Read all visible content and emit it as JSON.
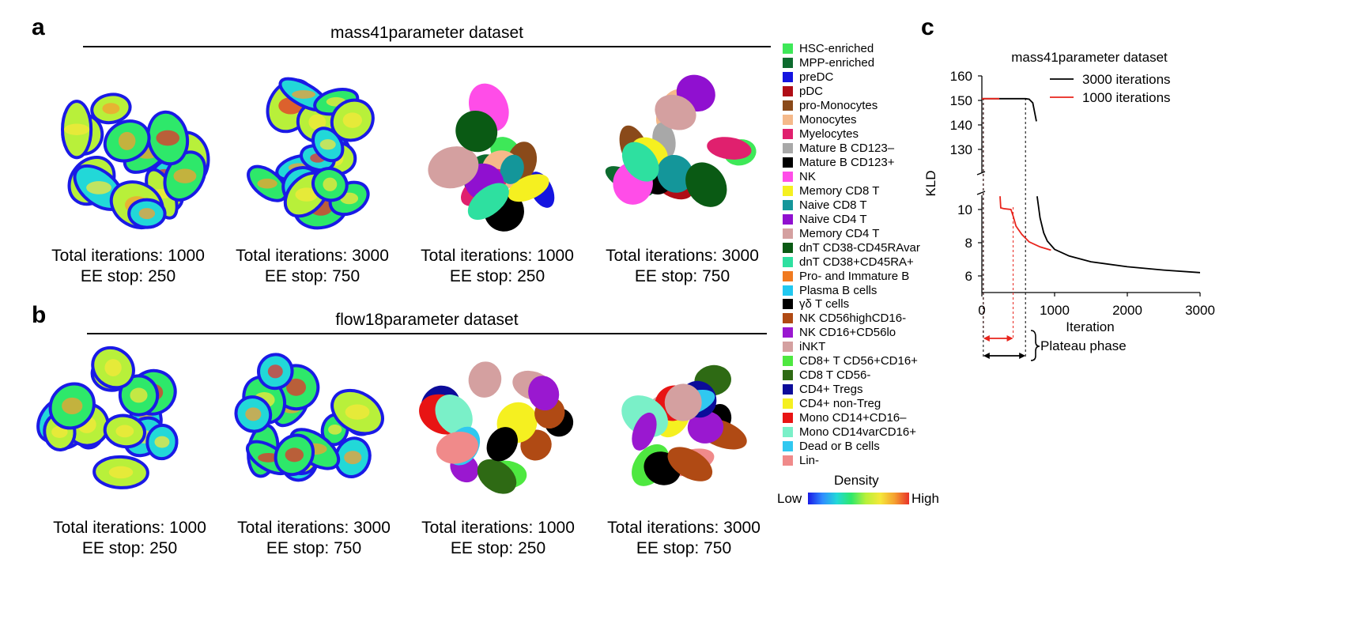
{
  "panel_a": {
    "letter": "a",
    "title": "mass41parameter dataset",
    "captions": [
      {
        "line1": "Total iterations: 1000",
        "line2": "EE stop: 250"
      },
      {
        "line1": "Total iterations: 3000",
        "line2": "EE stop: 750"
      },
      {
        "line1": "Total iterations: 1000",
        "line2": "EE stop: 250"
      },
      {
        "line1": "Total iterations: 3000",
        "line2": "EE stop: 750"
      }
    ],
    "legend": [
      {
        "label": "HSC-enriched",
        "color": "#3ee858"
      },
      {
        "label": "MPP-enriched",
        "color": "#0d6b2e"
      },
      {
        "label": "preDC",
        "color": "#1414e0"
      },
      {
        "label": "pDC",
        "color": "#b00d16"
      },
      {
        "label": "pro-Monocytes",
        "color": "#8a4a1a"
      },
      {
        "label": "Monocytes",
        "color": "#f5b98a"
      },
      {
        "label": "Myelocytes",
        "color": "#e0206e"
      },
      {
        "label": "Mature B CD123–",
        "color": "#a8a8a8"
      },
      {
        "label": "Mature B CD123+",
        "color": "#000000"
      },
      {
        "label": "NK",
        "color": "#ff4de8"
      },
      {
        "label": "Memory CD8 T",
        "color": "#f5f020"
      },
      {
        "label": "Naive CD8 T",
        "color": "#14969a"
      },
      {
        "label": "Naive CD4 T",
        "color": "#9010d0"
      },
      {
        "label": "Memory CD4 T",
        "color": "#d4a0a0"
      },
      {
        "label": "dnT CD38-CD45RAvar",
        "color": "#0a5a14"
      },
      {
        "label": "dnT CD38+CD45RA+",
        "color": "#2ee0a0"
      },
      {
        "label": "Pro- and Immature B",
        "color": "#f07a20"
      },
      {
        "label": "Plasma B cells",
        "color": "#22c8f0"
      }
    ]
  },
  "panel_b": {
    "letter": "b",
    "title": "flow18parameter dataset",
    "captions": [
      {
        "line1": "Total iterations: 1000",
        "line2": "EE stop: 250"
      },
      {
        "line1": "Total iterations: 3000",
        "line2": "EE stop: 750"
      },
      {
        "line1": "Total iterations: 1000",
        "line2": "EE stop: 250"
      },
      {
        "line1": "Total iterations: 3000",
        "line2": "EE stop: 750"
      }
    ],
    "legend": [
      {
        "label": "γδ T cells",
        "color": "#000000"
      },
      {
        "label": "NK CD56highCD16-",
        "color": "#b04a14"
      },
      {
        "label": "NK CD16+CD56lo",
        "color": "#9a18d0"
      },
      {
        "label": "iNKT",
        "color": "#d4a0a0"
      },
      {
        "label": "CD8+ T CD56+CD16+",
        "color": "#4ee840"
      },
      {
        "label": "CD8 T CD56-",
        "color": "#2e6a14"
      },
      {
        "label": "CD4+ Tregs",
        "color": "#0c0c9a"
      },
      {
        "label": "CD4+ non-Treg",
        "color": "#f5f020"
      },
      {
        "label": "Mono CD14+CD16–",
        "color": "#e81414"
      },
      {
        "label": "Mono CD14varCD16+",
        "color": "#7af0c8"
      },
      {
        "label": "Dead or B cells",
        "color": "#30c8f0"
      },
      {
        "label": "Lin-",
        "color": "#f08a8a"
      }
    ],
    "density": {
      "title": "Density",
      "low": "Low",
      "high": "High"
    }
  },
  "panel_c": {
    "letter": "c",
    "plateau_label": "Plateau phase"
  },
  "chart_data": {
    "type": "line",
    "title": "mass41parameter dataset",
    "xlabel": "Iteration",
    "ylabel": "KLD",
    "xlim": [
      0,
      3000
    ],
    "xticks": [
      0,
      1000,
      2000,
      3000
    ],
    "y_broken_axis": true,
    "ylim_upper": [
      120,
      160
    ],
    "yticks_upper": [
      130,
      140,
      150,
      160
    ],
    "ylim_lower": [
      5,
      11
    ],
    "yticks_lower": [
      6,
      8,
      10
    ],
    "legend_position": "top-right",
    "series": [
      {
        "name": "3000 iterations",
        "color": "#000000",
        "upper": {
          "x": [
            0,
            200,
            400,
            600,
            650,
            700,
            750
          ],
          "y": [
            150.7,
            150.7,
            150.7,
            150.7,
            150.5,
            149,
            141.5
          ]
        },
        "lower": {
          "x": [
            760,
            800,
            850,
            900,
            1000,
            1200,
            1500,
            2000,
            2500,
            3000
          ],
          "y": [
            10.8,
            9.5,
            8.6,
            8.1,
            7.6,
            7.2,
            6.85,
            6.55,
            6.35,
            6.2
          ]
        }
      },
      {
        "name": "1000 iterations",
        "color": "#e8241c",
        "upper": {
          "x": [
            0,
            100,
            200,
            240
          ],
          "y": [
            150.7,
            150.7,
            150.7,
            150.7
          ]
        },
        "lower": {
          "x": [
            250,
            260,
            300,
            400,
            430,
            470,
            550,
            650,
            800,
            950
          ],
          "y": [
            10.8,
            10.1,
            10.05,
            10.0,
            9.6,
            9.0,
            8.5,
            8.05,
            7.75,
            7.55
          ]
        }
      }
    ]
  }
}
